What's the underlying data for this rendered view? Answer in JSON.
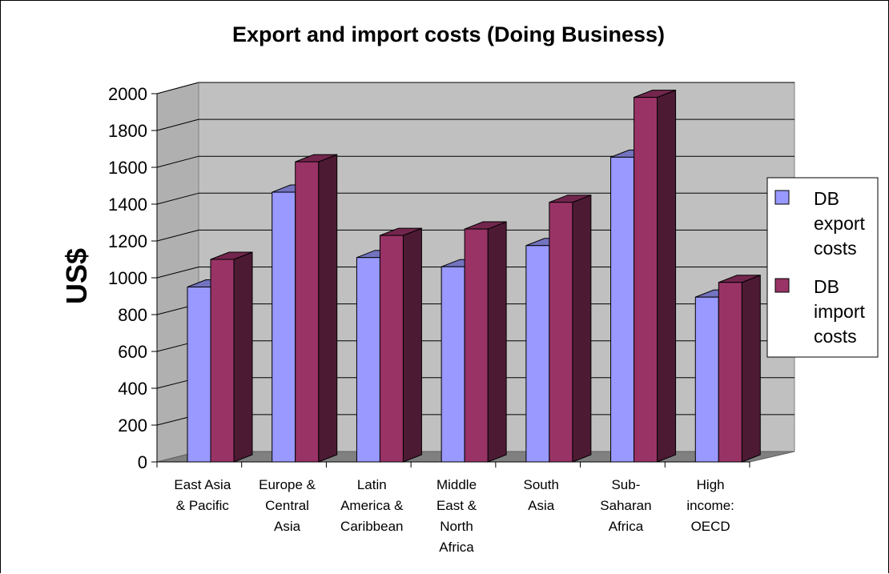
{
  "chart_data": {
    "type": "bar",
    "title": "Export and import costs (Doing Business)",
    "ylabel": "US$",
    "xlabel": "",
    "ylim": [
      0,
      2000
    ],
    "yticks": [
      0,
      200,
      400,
      600,
      800,
      1000,
      1200,
      1400,
      1600,
      1800,
      2000
    ],
    "grid": true,
    "legend_position": "right",
    "categories": [
      [
        "East Asia",
        "& Pacific"
      ],
      [
        "Europe &",
        "Central",
        "Asia"
      ],
      [
        "Latin",
        "America &",
        "Caribbean"
      ],
      [
        "Middle",
        "East &",
        "North",
        "Africa"
      ],
      [
        "South",
        "Asia"
      ],
      [
        "Sub-",
        "Saharan",
        "Africa"
      ],
      [
        "High",
        "income:",
        "OECD"
      ]
    ],
    "series": [
      {
        "name": "DB export costs",
        "legend_lines": [
          "DB",
          "export",
          "costs"
        ],
        "color": "#9999FF",
        "values": [
          950,
          1465,
          1110,
          1060,
          1175,
          1655,
          895
        ]
      },
      {
        "name": "DB import costs",
        "legend_lines": [
          "DB",
          "import",
          "costs"
        ],
        "color": "#993366",
        "values": [
          1100,
          1630,
          1230,
          1265,
          1410,
          1980,
          975
        ]
      }
    ]
  }
}
